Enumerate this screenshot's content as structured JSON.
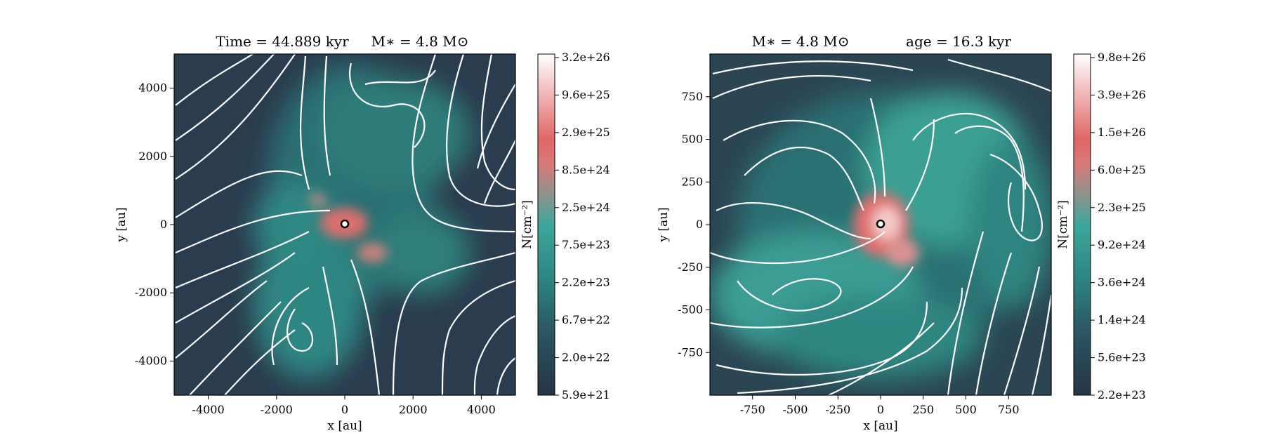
{
  "chart_data": [
    {
      "type": "heatmap",
      "panel": "left",
      "title": "Time = 44.889 kyr    M∗ = 4.8 M⊙",
      "title_parts": {
        "time_label": "Time = 44.889 kyr",
        "mass_label": "M∗ = 4.8 M⊙"
      },
      "xlabel": "x [au]",
      "ylabel": "y [au]",
      "xlim": [
        -5000,
        5000
      ],
      "ylim": [
        -5000,
        5000
      ],
      "xticks": [
        -4000,
        -2000,
        0,
        2000,
        4000
      ],
      "xtick_labels": [
        "-4000",
        "-2000",
        "0",
        "2000",
        "4000"
      ],
      "yticks": [
        -4000,
        -2000,
        0,
        2000,
        4000
      ],
      "ytick_labels": [
        "-4000",
        "-2000",
        "0",
        "2000",
        "4000"
      ],
      "overlay": "streamlines",
      "star_marker": [
        0,
        0
      ],
      "colorbar": {
        "label": "N[cm⁻²]",
        "scale": "log",
        "min": 5.9e+21,
        "max": 3.2e+26,
        "tick_labels": [
          "5.9e+21",
          "2.0e+22",
          "6.7e+22",
          "2.2e+23",
          "7.5e+23",
          "2.5e+24",
          "8.5e+24",
          "2.9e+25",
          "9.6e+25",
          "3.2e+26"
        ]
      }
    },
    {
      "type": "heatmap",
      "panel": "right",
      "title": "M∗ = 4.8 M⊙          age = 16.3 kyr",
      "title_parts": {
        "mass_label": "M∗ = 4.8 M⊙",
        "age_label": "age = 16.3 kyr"
      },
      "xlabel": "x [au]",
      "ylabel": "y [au]",
      "xlim": [
        -1000,
        1000
      ],
      "ylim": [
        -1000,
        1000
      ],
      "xticks": [
        -750,
        -500,
        -250,
        0,
        250,
        500,
        750
      ],
      "xtick_labels": [
        "-750",
        "-500",
        "-250",
        "0",
        "250",
        "500",
        "750"
      ],
      "yticks": [
        -750,
        -500,
        -250,
        0,
        250,
        500,
        750
      ],
      "ytick_labels": [
        "-750",
        "-500",
        "-250",
        "0",
        "250",
        "500",
        "750"
      ],
      "overlay": "streamlines",
      "star_marker": [
        0,
        0
      ],
      "colorbar": {
        "label": "N[cm⁻²]",
        "scale": "log",
        "min": 2.2e+23,
        "max": 9.8e+26,
        "tick_labels": [
          "2.2e+23",
          "5.6e+23",
          "1.4e+24",
          "3.6e+24",
          "9.2e+24",
          "2.3e+25",
          "6.0e+25",
          "1.5e+26",
          "3.9e+26",
          "9.8e+26"
        ]
      }
    }
  ],
  "colors": {
    "low": "#2a3c4e",
    "mid": "#2f938c",
    "high": "#e06666",
    "max": "#ffffff",
    "streamline": "#ffffff"
  }
}
